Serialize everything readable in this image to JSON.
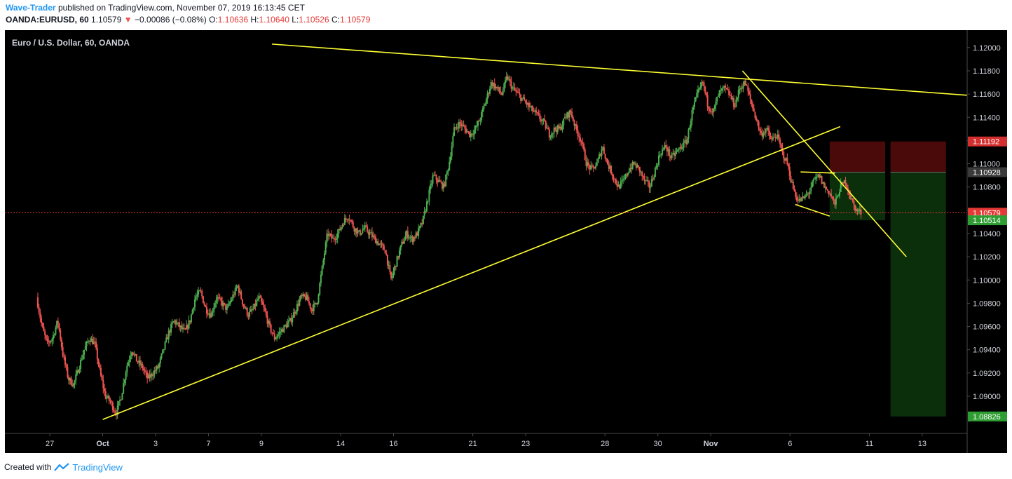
{
  "header": {
    "author": "Wave-Trader",
    "published": "published on TradingView.com, November 07, 2019 16:13:45 CET",
    "symbol": "OANDA:EURUSD, 60",
    "last": "1.10579",
    "change_arrow": "▼",
    "change": "−0.00086 (−0.08%)",
    "o_label": "O:",
    "o": "1.10636",
    "h_label": "H:",
    "h": "1.10640",
    "l_label": "L:",
    "l": "1.10526",
    "c_label": "C:",
    "c": "1.10579"
  },
  "footer": {
    "created_with": "Created with",
    "brand": "TradingView",
    "logo_icon": "tradingview-logo-icon"
  },
  "colors": {
    "background": "#000000",
    "up": "#4caf50",
    "down": "#ef5350",
    "trendline": "#ffff33",
    "stop_zone": "#4a0a0a",
    "target_zone": "#0b2e0b",
    "last_price_line": "#e53935",
    "axis_text": "#d1d4dc"
  },
  "chart_data": {
    "type": "candlestick",
    "title": "Euro / U.S. Dollar, 60, OANDA",
    "y_range": [
      1.0868,
      1.1215
    ],
    "y_ticks": [
      "1.12000",
      "1.11800",
      "1.11600",
      "1.11400",
      "1.11200",
      "1.11000",
      "1.10800",
      "1.10600",
      "1.10400",
      "1.10200",
      "1.10000",
      "1.09800",
      "1.09600",
      "1.09400",
      "1.09200",
      "1.09000"
    ],
    "x_ticks": [
      "27",
      "Oct",
      "3",
      "7",
      "9",
      "14",
      "16",
      "21",
      "23",
      "28",
      "30",
      "Nov",
      "6",
      "11",
      "13"
    ],
    "x_tick_index": [
      0.5,
      2.5,
      4.5,
      6.5,
      8.5,
      11.5,
      13.5,
      16.5,
      18.5,
      21.5,
      23.5,
      25.5,
      28.5,
      31.5,
      33.5
    ],
    "x_range_index": [
      -1.2,
      35.2
    ],
    "price_markers": [
      {
        "label": "1.11192",
        "value": 1.11192,
        "kind": "stop"
      },
      {
        "label": "1.10928",
        "value": 1.10928,
        "kind": "entry"
      },
      {
        "label": "1.10579",
        "value": 1.10579,
        "kind": "last"
      },
      {
        "label": "1.10514",
        "value": 1.10514,
        "kind": "target-small"
      },
      {
        "label": "1.08826",
        "value": 1.08826,
        "kind": "target"
      }
    ],
    "trendlines": [
      {
        "name": "upper-resistance",
        "from": [
          8.9,
          1.1203
        ],
        "to": [
          35.2,
          1.1159
        ]
      },
      {
        "name": "rising-support",
        "from": [
          2.5,
          1.088
        ],
        "to": [
          30.4,
          1.1132
        ]
      },
      {
        "name": "falling-channel",
        "from": [
          26.7,
          1.118
        ],
        "to": [
          32.9,
          1.102
        ]
      },
      {
        "name": "flag-top",
        "from": [
          28.9,
          1.1093
        ],
        "to": [
          30.2,
          1.1092
        ]
      },
      {
        "name": "flag-bottom",
        "from": [
          28.7,
          1.1065
        ],
        "to": [
          30.0,
          1.1055
        ]
      }
    ],
    "positions": [
      {
        "name": "short-small",
        "x0": 30.0,
        "x1": 32.1,
        "entry": 1.10928,
        "stop": 1.11192,
        "target": 1.10514
      },
      {
        "name": "short-main",
        "x0": 32.3,
        "x1": 34.4,
        "entry": 1.10928,
        "stop": 1.11192,
        "target": 1.08826
      }
    ],
    "last_price": 1.10579,
    "price_path": [
      [
        0.0,
        1.0985
      ],
      [
        0.2,
        1.096
      ],
      [
        0.4,
        1.0945
      ],
      [
        0.6,
        1.095
      ],
      [
        0.8,
        1.0965
      ],
      [
        1.0,
        1.0935
      ],
      [
        1.2,
        1.0915
      ],
      [
        1.4,
        1.091
      ],
      [
        1.6,
        1.0925
      ],
      [
        1.8,
        1.094
      ],
      [
        2.0,
        1.095
      ],
      [
        2.2,
        1.0945
      ],
      [
        2.4,
        1.092
      ],
      [
        2.6,
        1.09
      ],
      [
        2.8,
        1.0895
      ],
      [
        3.0,
        1.0885
      ],
      [
        3.2,
        1.09
      ],
      [
        3.4,
        1.0925
      ],
      [
        3.6,
        1.094
      ],
      [
        3.8,
        1.093
      ],
      [
        4.0,
        1.0925
      ],
      [
        4.2,
        1.0915
      ],
      [
        4.4,
        1.092
      ],
      [
        4.6,
        1.0925
      ],
      [
        4.8,
        1.094
      ],
      [
        5.0,
        1.0955
      ],
      [
        5.2,
        1.0965
      ],
      [
        5.4,
        1.096
      ],
      [
        5.6,
        1.0955
      ],
      [
        5.8,
        1.0965
      ],
      [
        6.0,
        1.0985
      ],
      [
        6.2,
        1.099
      ],
      [
        6.4,
        1.0975
      ],
      [
        6.6,
        1.097
      ],
      [
        6.8,
        1.0985
      ],
      [
        7.0,
        1.098
      ],
      [
        7.2,
        1.0975
      ],
      [
        7.4,
        1.0985
      ],
      [
        7.6,
        1.0995
      ],
      [
        7.8,
        1.098
      ],
      [
        8.0,
        1.097
      ],
      [
        8.2,
        1.0975
      ],
      [
        8.4,
        1.0985
      ],
      [
        8.6,
        1.0975
      ],
      [
        8.8,
        1.096
      ],
      [
        9.0,
        1.095
      ],
      [
        9.2,
        1.0955
      ],
      [
        9.4,
        1.096
      ],
      [
        9.6,
        1.0965
      ],
      [
        9.8,
        1.0975
      ],
      [
        10.0,
        1.0985
      ],
      [
        10.2,
        1.0985
      ],
      [
        10.4,
        1.0975
      ],
      [
        10.6,
        1.098
      ],
      [
        10.8,
        1.101
      ],
      [
        11.0,
        1.104
      ],
      [
        11.2,
        1.1035
      ],
      [
        11.4,
        1.104
      ],
      [
        11.6,
        1.105
      ],
      [
        11.8,
        1.1055
      ],
      [
        12.0,
        1.1045
      ],
      [
        12.2,
        1.104
      ],
      [
        12.4,
        1.1045
      ],
      [
        12.6,
        1.104
      ],
      [
        12.8,
        1.1035
      ],
      [
        13.0,
        1.103
      ],
      [
        13.2,
        1.1025
      ],
      [
        13.4,
        1.1
      ],
      [
        13.6,
        1.1015
      ],
      [
        13.8,
        1.103
      ],
      [
        14.0,
        1.104
      ],
      [
        14.2,
        1.1035
      ],
      [
        14.4,
        1.104
      ],
      [
        14.6,
        1.105
      ],
      [
        14.8,
        1.107
      ],
      [
        15.0,
        1.109
      ],
      [
        15.2,
        1.1085
      ],
      [
        15.4,
        1.108
      ],
      [
        15.6,
        1.11
      ],
      [
        15.8,
        1.113
      ],
      [
        16.0,
        1.1135
      ],
      [
        16.2,
        1.113
      ],
      [
        16.4,
        1.1125
      ],
      [
        16.6,
        1.113
      ],
      [
        16.8,
        1.114
      ],
      [
        17.0,
        1.1155
      ],
      [
        17.2,
        1.117
      ],
      [
        17.4,
        1.1165
      ],
      [
        17.6,
        1.116
      ],
      [
        17.8,
        1.1175
      ],
      [
        18.0,
        1.1165
      ],
      [
        18.2,
        1.116
      ],
      [
        18.4,
        1.1155
      ],
      [
        18.6,
        1.115
      ],
      [
        18.8,
        1.1145
      ],
      [
        19.0,
        1.114
      ],
      [
        19.2,
        1.1135
      ],
      [
        19.4,
        1.1125
      ],
      [
        19.6,
        1.113
      ],
      [
        19.8,
        1.113
      ],
      [
        20.0,
        1.114
      ],
      [
        20.2,
        1.1145
      ],
      [
        20.4,
        1.113
      ],
      [
        20.6,
        1.112
      ],
      [
        20.8,
        1.11
      ],
      [
        21.0,
        1.1095
      ],
      [
        21.2,
        1.11
      ],
      [
        21.4,
        1.1115
      ],
      [
        21.6,
        1.11
      ],
      [
        21.8,
        1.109
      ],
      [
        22.0,
        1.108
      ],
      [
        22.2,
        1.1085
      ],
      [
        22.4,
        1.1095
      ],
      [
        22.6,
        1.11
      ],
      [
        22.8,
        1.1095
      ],
      [
        23.0,
        1.1085
      ],
      [
        23.2,
        1.108
      ],
      [
        23.4,
        1.1095
      ],
      [
        23.6,
        1.111
      ],
      [
        23.8,
        1.1115
      ],
      [
        24.0,
        1.1105
      ],
      [
        24.2,
        1.111
      ],
      [
        24.4,
        1.1115
      ],
      [
        24.6,
        1.112
      ],
      [
        24.8,
        1.1145
      ],
      [
        25.0,
        1.116
      ],
      [
        25.2,
        1.117
      ],
      [
        25.4,
        1.115
      ],
      [
        25.6,
        1.1145
      ],
      [
        25.8,
        1.116
      ],
      [
        26.0,
        1.1165
      ],
      [
        26.2,
        1.116
      ],
      [
        26.4,
        1.115
      ],
      [
        26.6,
        1.1165
      ],
      [
        26.8,
        1.117
      ],
      [
        27.0,
        1.1155
      ],
      [
        27.2,
        1.114
      ],
      [
        27.4,
        1.1125
      ],
      [
        27.6,
        1.113
      ],
      [
        27.8,
        1.112
      ],
      [
        28.0,
        1.1125
      ],
      [
        28.2,
        1.111
      ],
      [
        28.4,
        1.11
      ],
      [
        28.6,
        1.108
      ],
      [
        28.8,
        1.1068
      ],
      [
        29.0,
        1.107
      ],
      [
        29.2,
        1.1075
      ],
      [
        29.4,
        1.1085
      ],
      [
        29.6,
        1.109
      ],
      [
        29.8,
        1.108
      ],
      [
        30.0,
        1.1075
      ],
      [
        30.2,
        1.1065
      ],
      [
        30.4,
        1.108
      ],
      [
        30.6,
        1.1085
      ],
      [
        30.8,
        1.107
      ],
      [
        31.0,
        1.106
      ],
      [
        31.2,
        1.1058
      ]
    ]
  }
}
